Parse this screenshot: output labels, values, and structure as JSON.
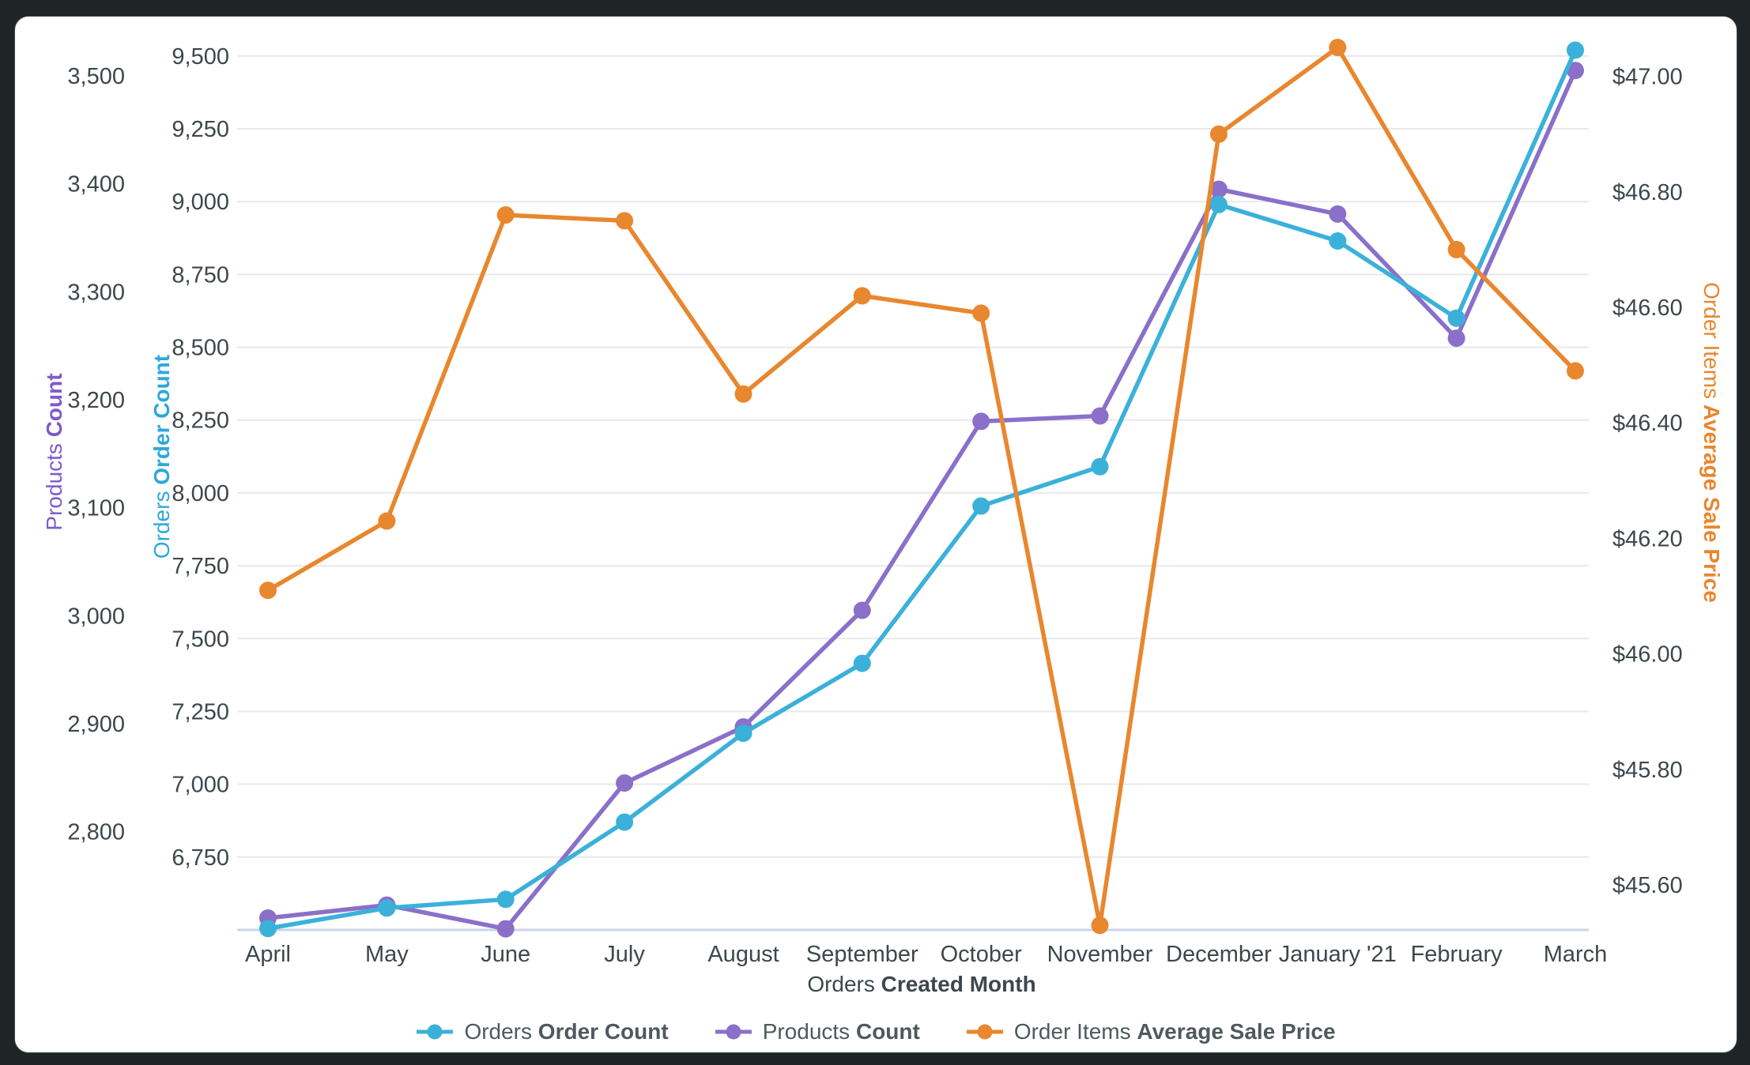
{
  "window": {
    "frame_color": "#252b2c",
    "card_background": "#ffffff"
  },
  "chart_data": {
    "type": "line",
    "categories": [
      "April",
      "May",
      "June",
      "July",
      "August",
      "September",
      "October",
      "November",
      "December",
      "January '21",
      "February",
      "March"
    ],
    "x_axis": {
      "title_prefix": "Orders",
      "title_bold": "Created Month",
      "text_color": "#3e474c"
    },
    "y_axes": [
      {
        "id": "products",
        "side": "left",
        "title_prefix": "Products",
        "title_bold": "Count",
        "title_color": "#7c5bc9",
        "min": 2709,
        "max": 3530,
        "ticks": [
          2800,
          2900,
          3000,
          3100,
          3200,
          3300,
          3400,
          3500
        ],
        "tick_labels": [
          "2,800",
          "2,900",
          "3,000",
          "3,100",
          "3,200",
          "3,300",
          "3,400",
          "3,500"
        ]
      },
      {
        "id": "orders",
        "side": "left",
        "title_prefix": "Orders",
        "title_bold": "Order Count",
        "title_color": "#2ea8da",
        "min": 6500,
        "max": 9543,
        "ticks": [
          6750,
          7000,
          7250,
          7500,
          7750,
          8000,
          8250,
          8500,
          8750,
          9000,
          9250,
          9500
        ],
        "tick_labels": [
          "6,750",
          "7,000",
          "7,250",
          "7,500",
          "7,750",
          "8,000",
          "8,250",
          "8,500",
          "8,750",
          "9,000",
          "9,250",
          "9,500"
        ]
      },
      {
        "id": "price",
        "side": "right",
        "title_prefix": "Order Items",
        "title_bold": "Average Sale Price",
        "title_color": "#e8872e",
        "min": 45.522,
        "max": 47.057,
        "ticks": [
          45.6,
          45.8,
          46.0,
          46.2,
          46.4,
          46.6,
          46.8,
          47.0
        ],
        "tick_labels": [
          "$45.60",
          "$45.80",
          "$46.00",
          "$46.20",
          "$46.40",
          "$46.60",
          "$46.80",
          "$47.00"
        ]
      }
    ],
    "series": [
      {
        "id": "orders",
        "label_prefix": "Orders",
        "label_bold": "Order Count",
        "color": "#3bb1da",
        "axis": "orders",
        "values": [
          6505,
          6575,
          6605,
          6870,
          7175,
          7415,
          7955,
          8090,
          8990,
          8865,
          8600,
          9520
        ]
      },
      {
        "id": "products",
        "label_prefix": "Products",
        "label_bold": "Count",
        "color": "#8a70c9",
        "axis": "products",
        "values": [
          2720,
          2732,
          2710,
          2845,
          2897,
          3005,
          3180,
          3185,
          3395,
          3372,
          3257,
          3505
        ]
      },
      {
        "id": "price",
        "label_prefix": "Order Items",
        "label_bold": "Average Sale Price",
        "color": "#e8872e",
        "axis": "price",
        "values": [
          46.11,
          46.23,
          46.76,
          46.75,
          46.45,
          46.62,
          46.59,
          45.53,
          46.9,
          47.05,
          46.7,
          46.49
        ]
      }
    ],
    "grid": {
      "line_color": "#e9e9e9",
      "baseline_color": "#c9d3eb",
      "tick_text_color": "#3e474c"
    },
    "legend_position": "bottom"
  }
}
